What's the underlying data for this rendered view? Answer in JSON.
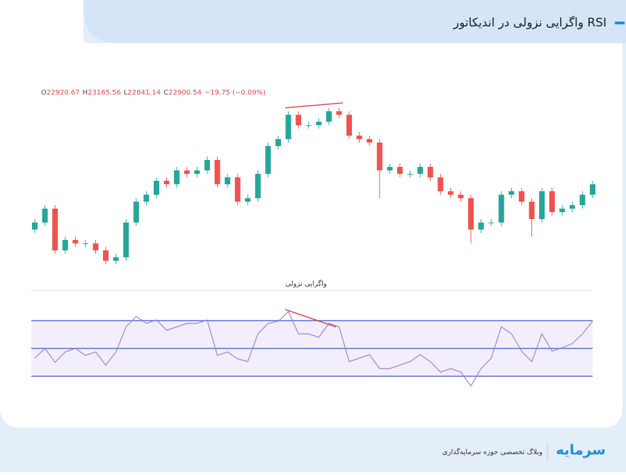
{
  "header": {
    "title": "واگرایی نزولی در اندیکاتور RSI"
  },
  "chart_data": [
    {
      "type": "candlestick",
      "ohlc_header": [
        "O",
        "22920.67",
        "H",
        "23165.56",
        "L",
        "22841.14",
        "C",
        "22900.54",
        "−19.75 (−0.09%)"
      ],
      "up_color": "#26a69a",
      "down_color": "#ef5350",
      "ylim": [
        22400,
        23420
      ],
      "open": [
        22680,
        22720,
        22800,
        22560,
        22620,
        22600,
        22600,
        22560,
        22500,
        22520,
        22720,
        22840,
        22880,
        22960,
        22940,
        23020,
        23000,
        23020,
        23080,
        22940,
        22980,
        22840,
        22860,
        23000,
        23160,
        23200,
        23340,
        23280,
        23280,
        23300,
        23360,
        23340,
        23220,
        23200,
        23180,
        23020,
        23040,
        23000,
        23000,
        23040,
        22980,
        22900,
        22880,
        22860,
        22680,
        22720,
        22720,
        22880,
        22900,
        22840,
        22740,
        22900,
        22780,
        22800,
        22820,
        22880
      ],
      "high": [
        22740,
        22820,
        22820,
        22640,
        22640,
        22620,
        22620,
        22580,
        22540,
        22740,
        22860,
        22900,
        22980,
        22980,
        23040,
        23040,
        23040,
        23100,
        23100,
        23000,
        23000,
        22880,
        23020,
        23180,
        23220,
        23360,
        23360,
        23300,
        23320,
        23380,
        23380,
        23360,
        23240,
        23220,
        23200,
        23060,
        23060,
        23020,
        23060,
        23060,
        23000,
        22920,
        22900,
        22880,
        22740,
        22740,
        22900,
        22920,
        22920,
        22860,
        22920,
        22920,
        22820,
        22840,
        22900,
        22960
      ],
      "low": [
        22660,
        22700,
        22540,
        22540,
        22580,
        22580,
        22540,
        22480,
        22480,
        22500,
        22700,
        22820,
        22860,
        22920,
        22920,
        22980,
        22980,
        23000,
        22920,
        22920,
        22820,
        22820,
        22840,
        22980,
        23140,
        23180,
        23260,
        23260,
        23260,
        23280,
        23320,
        23200,
        23180,
        23160,
        22860,
        23000,
        22980,
        22980,
        22980,
        22960,
        22880,
        22860,
        22840,
        22600,
        22660,
        22700,
        22700,
        22860,
        22820,
        22640,
        22720,
        22760,
        22760,
        22780,
        22800,
        22860
      ],
      "close": [
        22720,
        22800,
        22560,
        22620,
        22600,
        22600,
        22560,
        22500,
        22520,
        22720,
        22840,
        22880,
        22960,
        22940,
        23020,
        23000,
        23020,
        23080,
        22940,
        22980,
        22840,
        22860,
        23000,
        23160,
        23200,
        23340,
        23280,
        23280,
        23300,
        23360,
        23340,
        23220,
        23200,
        23180,
        23020,
        23040,
        23000,
        23000,
        23040,
        22980,
        22900,
        22880,
        22860,
        22680,
        22720,
        22720,
        22880,
        22900,
        22840,
        22740,
        22900,
        22780,
        22800,
        22820,
        22880,
        22940
      ]
    },
    {
      "type": "line",
      "title": "واگرایی نزولی",
      "color": "#9b7fd4",
      "band_color": "#5b6bd6",
      "ylim": [
        20,
        80
      ],
      "yticks": [
        30,
        50,
        70
      ],
      "values": [
        43,
        50,
        40,
        47.5,
        50,
        45,
        47.5,
        38,
        47.5,
        65.5,
        73,
        68,
        70.5,
        63,
        65.5,
        68,
        68,
        70.5,
        45,
        47.5,
        42.5,
        40.5,
        60.5,
        68,
        69.5,
        76.5,
        60.5,
        60.5,
        58,
        68,
        65.5,
        40.5,
        43,
        45.5,
        35.5,
        35.5,
        38,
        40.5,
        45.5,
        40.5,
        33,
        35.5,
        33,
        23,
        35.5,
        43,
        65.5,
        60.5,
        48,
        40.5,
        60.5,
        48,
        50.5,
        53.5,
        60.5,
        69.5
      ]
    }
  ],
  "footer": {
    "tagline": "وبلاگ تخصصی حوزه سرمایه‌گذاری",
    "logo": "سرمایه"
  }
}
